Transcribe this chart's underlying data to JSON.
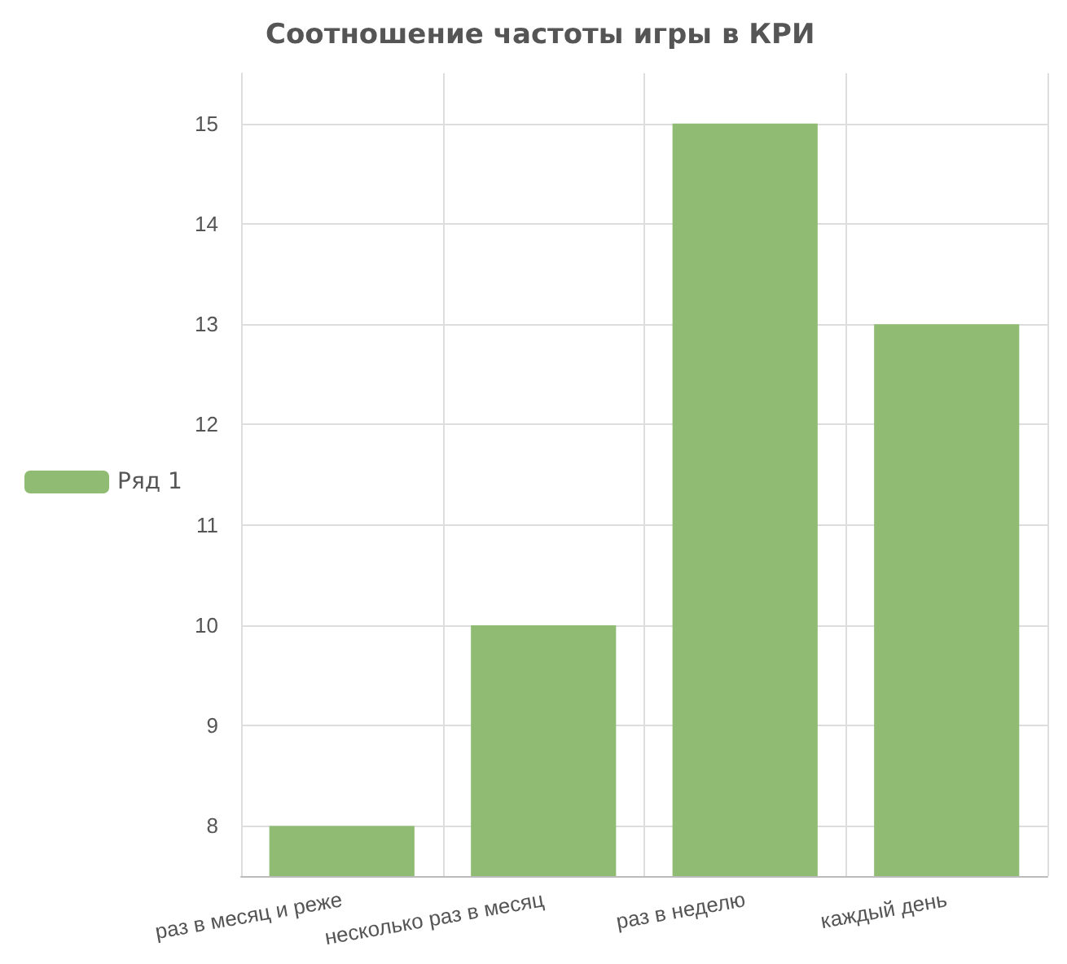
{
  "chart_data": {
    "type": "bar",
    "title": "Соотношение частоты игры в КРИ",
    "categories": [
      "раз в месяц и реже",
      "несколько раз в месяц",
      "раз в неделю",
      "каждый день"
    ],
    "series": [
      {
        "name": "Ряд 1",
        "color": "#8fbc72",
        "values": [
          8,
          10,
          15,
          13
        ]
      }
    ],
    "ylim": [
      7.5,
      15.5
    ],
    "yticks": [
      8,
      9,
      10,
      11,
      12,
      13,
      14,
      15
    ],
    "grid": true,
    "legend": "left"
  }
}
